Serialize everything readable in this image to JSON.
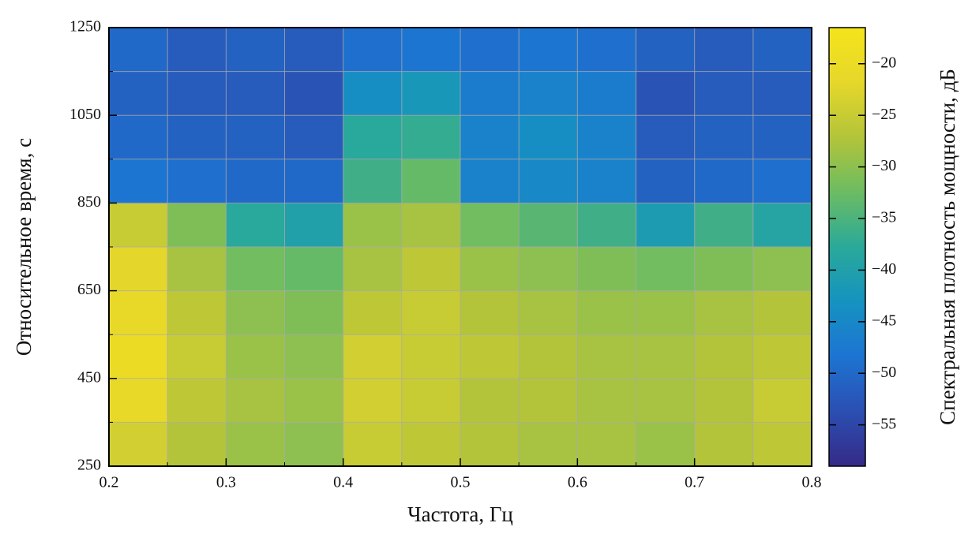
{
  "chart_data": {
    "type": "heatmap",
    "xlabel": "Частота, Гц",
    "ylabel": "Относительное время, с",
    "colorbar_label": "Спектральная плотность мощности, дБ",
    "x": [
      0.225,
      0.275,
      0.325,
      0.375,
      0.425,
      0.475,
      0.525,
      0.575,
      0.625,
      0.675,
      0.725,
      0.775
    ],
    "y": [
      300,
      400,
      500,
      600,
      700,
      800,
      900,
      1000,
      1100,
      1200
    ],
    "z": [
      [
        -24,
        -27,
        -29,
        -30,
        -25,
        -26,
        -27,
        -28,
        -28,
        -29,
        -27,
        -26
      ],
      [
        -21,
        -26,
        -28,
        -29,
        -24,
        -25,
        -27,
        -27,
        -28,
        -28,
        -27,
        -25
      ],
      [
        -20,
        -25,
        -29,
        -30,
        -24,
        -25,
        -26,
        -27,
        -28,
        -28,
        -27,
        -26
      ],
      [
        -21,
        -26,
        -30,
        -31,
        -26,
        -25,
        -27,
        -28,
        -29,
        -29,
        -28,
        -27
      ],
      [
        -22,
        -28,
        -32,
        -33,
        -28,
        -26,
        -29,
        -30,
        -31,
        -32,
        -31,
        -30
      ],
      [
        -25,
        -31,
        -38,
        -40,
        -29,
        -28,
        -32,
        -34,
        -36,
        -41,
        -36,
        -39
      ],
      [
        -48,
        -49,
        -50,
        -50,
        -36,
        -33,
        -46,
        -45,
        -46,
        -51,
        -50,
        -49
      ],
      [
        -50,
        -51,
        -51,
        -52,
        -38,
        -37,
        -46,
        -44,
        -46,
        -52,
        -51,
        -51
      ],
      [
        -51,
        -52,
        -52,
        -53,
        -44,
        -42,
        -47,
        -46,
        -47,
        -53,
        -52,
        -52
      ],
      [
        -50,
        -52,
        -51,
        -52,
        -49,
        -48,
        -49,
        -48,
        -49,
        -51,
        -52,
        -51
      ]
    ],
    "xlim": [
      0.2,
      0.8
    ],
    "ylim": [
      250,
      1250
    ],
    "xticks": [
      0.2,
      0.3,
      0.4,
      0.5,
      0.6,
      0.7,
      0.8
    ],
    "yticks": [
      250,
      450,
      650,
      850,
      1050,
      1250
    ],
    "x_minor_ticks": [
      0.25,
      0.35,
      0.45,
      0.55,
      0.65,
      0.75
    ],
    "y_minor_ticks": [
      350,
      550,
      750,
      950,
      1150
    ],
    "grid": true,
    "zlim": [
      -59,
      -16.5
    ],
    "zticks": [
      {
        "value": -20,
        "label": "−20"
      },
      {
        "value": -25,
        "label": "−25"
      },
      {
        "value": -30,
        "label": "−30"
      },
      {
        "value": -35,
        "label": "−35"
      },
      {
        "value": -40,
        "label": "−40"
      },
      {
        "value": -45,
        "label": "−45"
      },
      {
        "value": -50,
        "label": "−50"
      },
      {
        "value": -55,
        "label": "−55"
      }
    ],
    "colormap": [
      "#352a87",
      "#2b4fb2",
      "#1d74d2",
      "#1593c0",
      "#2aa99a",
      "#6cbc62",
      "#b3c43a",
      "#e6d72a",
      "#f4e41c"
    ]
  }
}
